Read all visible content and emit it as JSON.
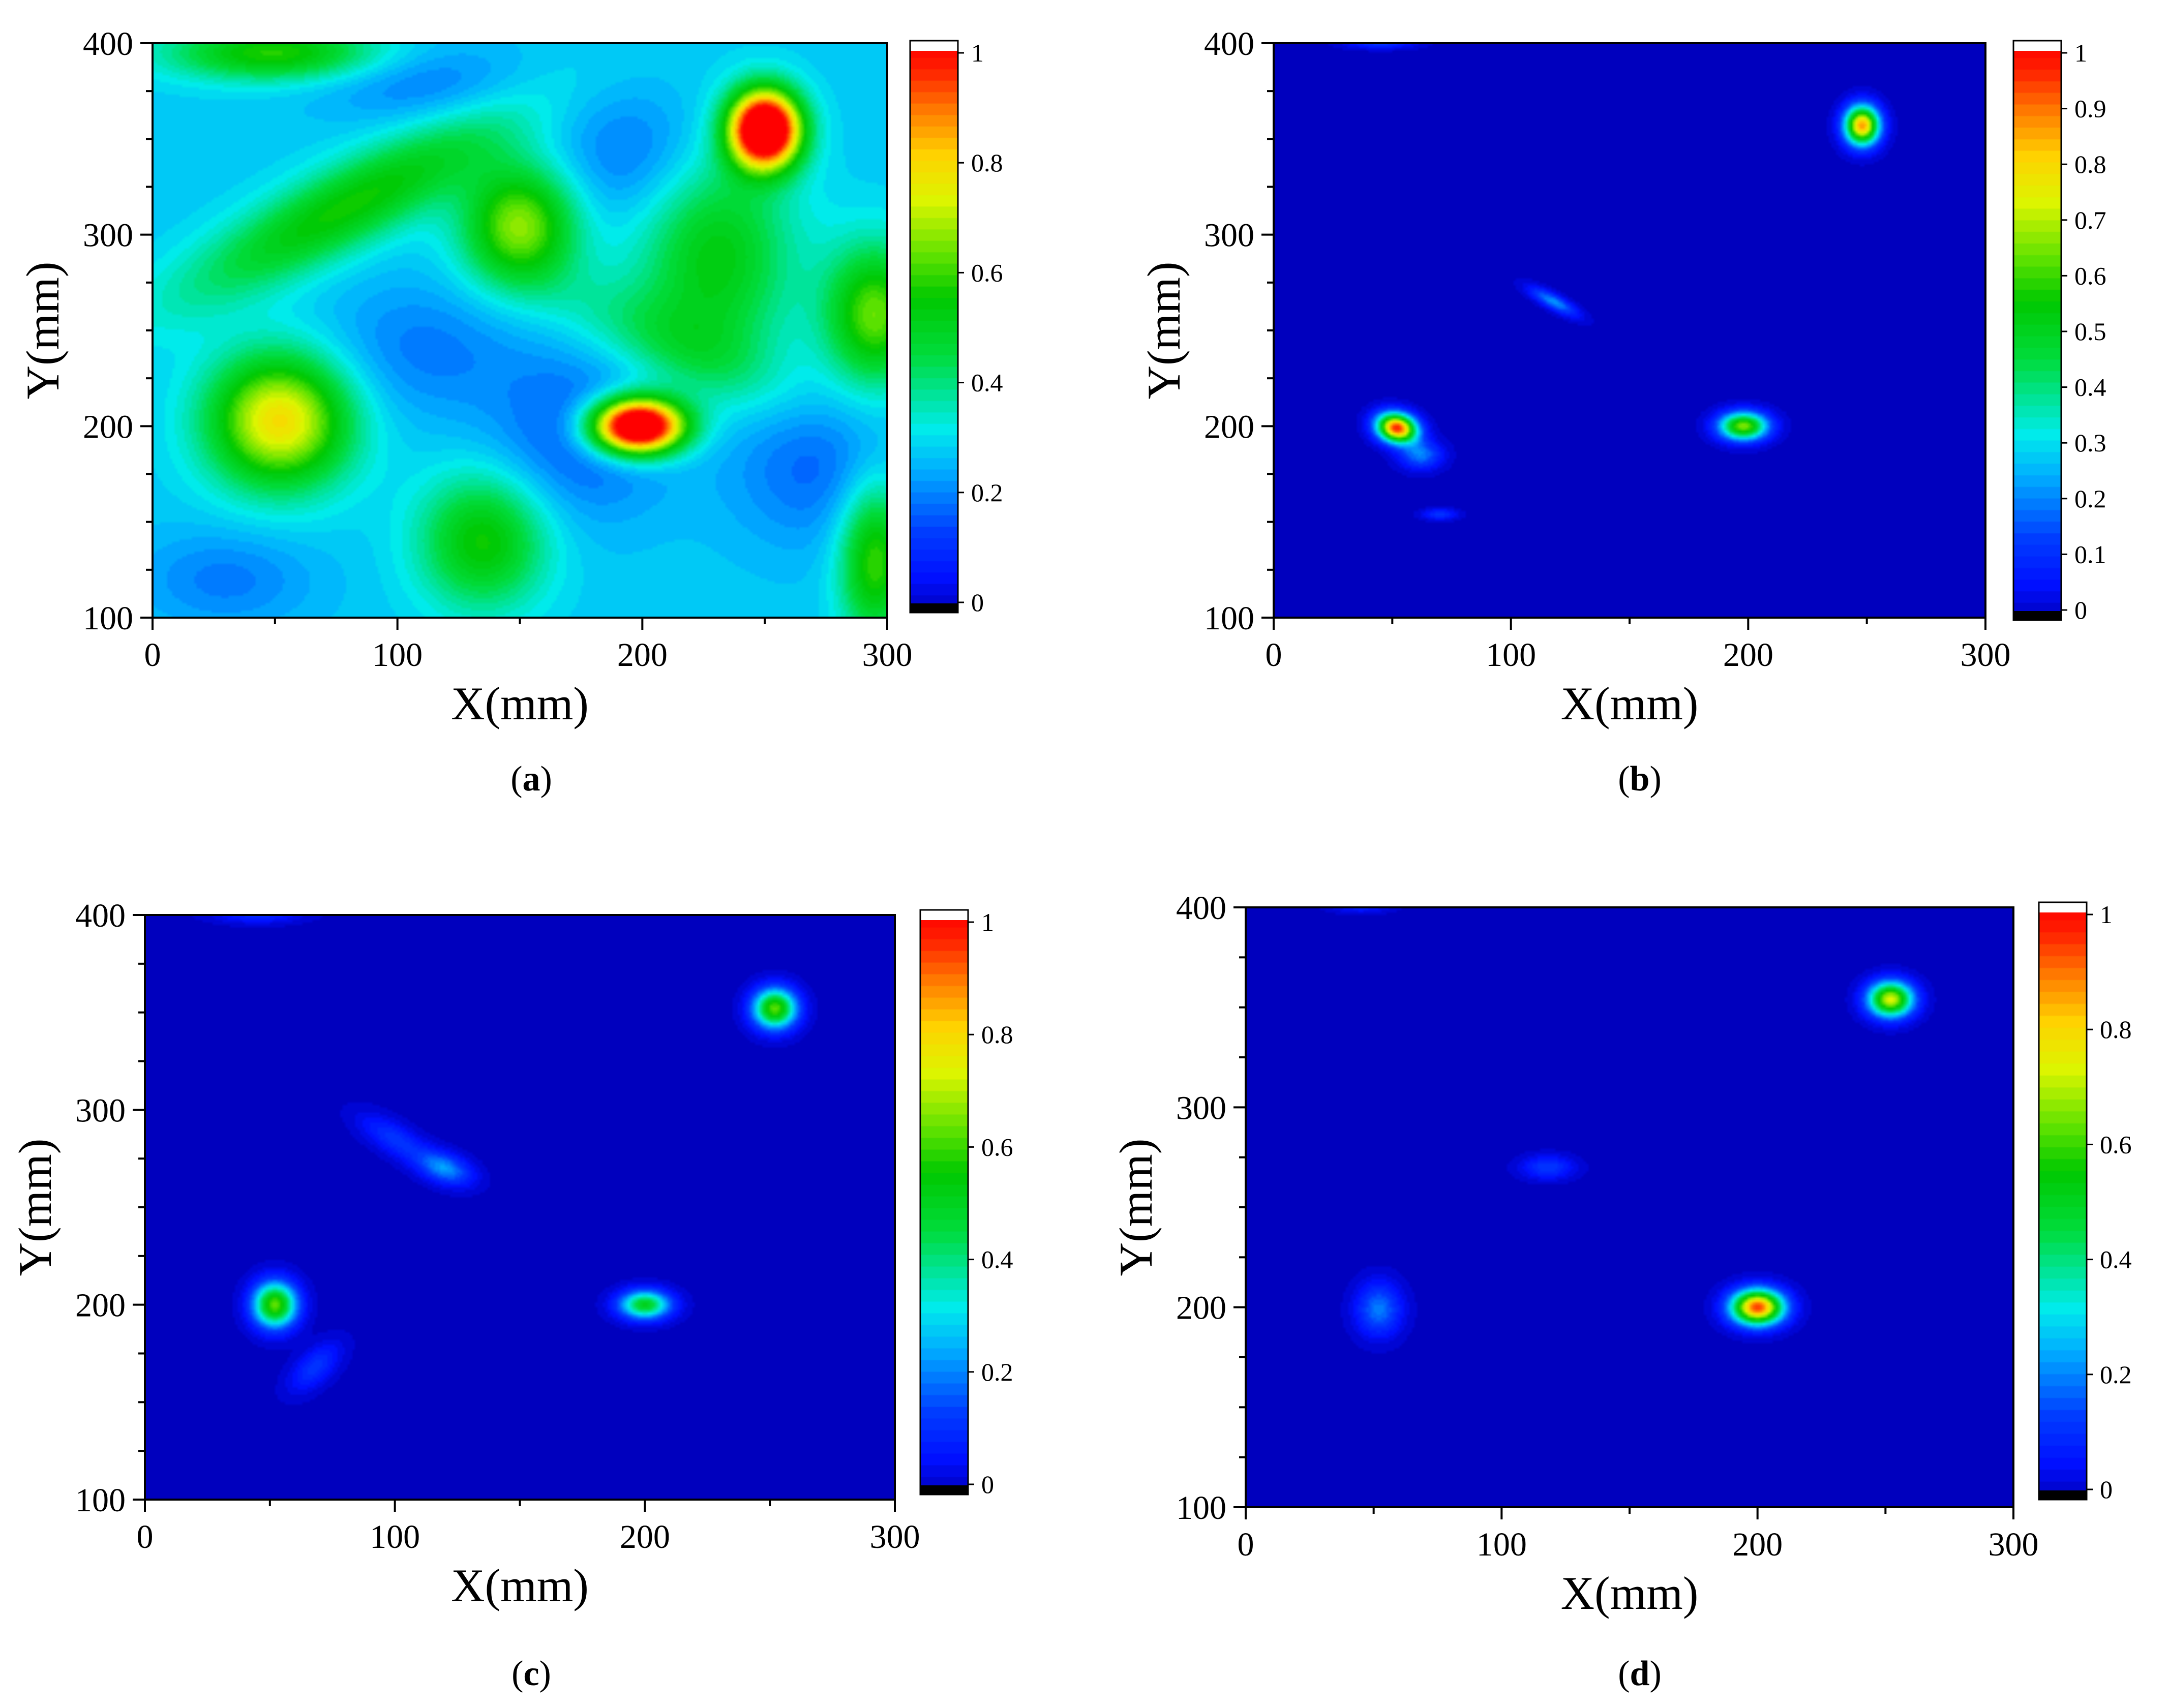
{
  "chart_data": [
    {
      "panel": "a",
      "type": "heatmap",
      "xlabel": "X(mm)",
      "ylabel": "Y(mm)",
      "xlim": [
        0,
        300
      ],
      "ylim": [
        100,
        400
      ],
      "xticks": [
        "0",
        "100",
        "200",
        "300"
      ],
      "yticks": [
        "100",
        "200",
        "300",
        "400"
      ],
      "colorbar": {
        "min": 0,
        "max": 1,
        "ticks": [
          "0",
          "0.2",
          "0.4",
          "0.6",
          "0.8",
          "1"
        ]
      },
      "background_value": 0.28,
      "features": [
        {
          "x": 250,
          "y": 355,
          "value": 1.0,
          "sx": 10,
          "sy": 14,
          "rot": 0
        },
        {
          "x": 198,
          "y": 200,
          "value": 1.0,
          "sx": 13,
          "sy": 10,
          "rot": 0
        },
        {
          "x": 52,
          "y": 203,
          "value": 0.5,
          "sx": 20,
          "sy": 24,
          "rot": 0
        },
        {
          "x": 150,
          "y": 305,
          "value": 0.38,
          "sx": 16,
          "sy": 22,
          "rot": 0
        },
        {
          "x": 80,
          "y": 315,
          "value": 0.28,
          "sx": 55,
          "sy": 14,
          "rot": 35
        },
        {
          "x": 230,
          "y": 290,
          "value": 0.25,
          "sx": 22,
          "sy": 40,
          "rot": 0
        },
        {
          "x": 295,
          "y": 258,
          "value": 0.35,
          "sx": 14,
          "sy": 25,
          "rot": 0
        },
        {
          "x": 135,
          "y": 140,
          "value": 0.28,
          "sx": 18,
          "sy": 24,
          "rot": 0
        },
        {
          "x": 50,
          "y": 395,
          "value": 0.3,
          "sx": 30,
          "sy": 10,
          "rot": 0
        },
        {
          "x": 295,
          "y": 130,
          "value": 0.32,
          "sx": 10,
          "sy": 28,
          "rot": 0
        },
        {
          "x": 210,
          "y": 245,
          "value": 0.12,
          "sx": 40,
          "sy": 15,
          "rot": -30
        },
        {
          "x": 175,
          "y": 195,
          "value": -0.12,
          "sx": 25,
          "sy": 30,
          "rot": 0
        },
        {
          "x": 270,
          "y": 180,
          "value": -0.1,
          "sx": 25,
          "sy": 30,
          "rot": 0
        },
        {
          "x": 200,
          "y": 340,
          "value": -0.1,
          "sx": 25,
          "sy": 25,
          "rot": 0
        },
        {
          "x": 110,
          "y": 380,
          "value": -0.08,
          "sx": 30,
          "sy": 15,
          "rot": 0
        },
        {
          "x": 30,
          "y": 120,
          "value": -0.08,
          "sx": 25,
          "sy": 18,
          "rot": 0
        },
        {
          "x": 110,
          "y": 240,
          "value": -0.08,
          "sx": 30,
          "sy": 25,
          "rot": 0
        }
      ]
    },
    {
      "panel": "b",
      "type": "heatmap",
      "xlabel": "X(mm)",
      "ylabel": "Y(mm)",
      "xlim": [
        0,
        300
      ],
      "ylim": [
        100,
        400
      ],
      "xticks": [
        "0",
        "100",
        "200",
        "300"
      ],
      "yticks": [
        "100",
        "200",
        "300",
        "400"
      ],
      "colorbar": {
        "min": 0,
        "max": 1,
        "ticks": [
          "0",
          "0.1",
          "0.2",
          "0.3",
          "0.4",
          "0.5",
          "0.6",
          "0.7",
          "0.8",
          "0.9",
          "1"
        ]
      },
      "background_value": 0,
      "features": [
        {
          "x": 248,
          "y": 357,
          "value": 0.85,
          "sx": 5,
          "sy": 7,
          "rot": 0
        },
        {
          "x": 52,
          "y": 199,
          "value": 0.95,
          "sx": 6,
          "sy": 5,
          "rot": -30
        },
        {
          "x": 198,
          "y": 200,
          "value": 0.65,
          "sx": 7,
          "sy": 5,
          "rot": 0
        },
        {
          "x": 118,
          "y": 265,
          "value": 0.22,
          "sx": 8,
          "sy": 2.5,
          "rot": -35
        },
        {
          "x": 62,
          "y": 185,
          "value": 0.2,
          "sx": 6,
          "sy": 5,
          "rot": 0
        },
        {
          "x": 70,
          "y": 154,
          "value": 0.12,
          "sx": 5,
          "sy": 2,
          "rot": 0
        },
        {
          "x": 45,
          "y": 400,
          "value": 0.12,
          "sx": 10,
          "sy": 2,
          "rot": 0
        }
      ]
    },
    {
      "panel": "c",
      "type": "heatmap",
      "xlabel": "X(mm)",
      "ylabel": "Y(mm)",
      "xlim": [
        0,
        300
      ],
      "ylim": [
        100,
        400
      ],
      "xticks": [
        "0",
        "100",
        "200",
        "300"
      ],
      "yticks": [
        "100",
        "200",
        "300",
        "400"
      ],
      "colorbar": {
        "min": 0,
        "max": 1,
        "ticks": [
          "0",
          "0.2",
          "0.4",
          "0.6",
          "0.8",
          "1"
        ]
      },
      "background_value": 0,
      "features": [
        {
          "x": 252,
          "y": 352,
          "value": 0.62,
          "sx": 6,
          "sy": 7,
          "rot": 0
        },
        {
          "x": 52,
          "y": 200,
          "value": 0.62,
          "sx": 6,
          "sy": 8,
          "rot": 0
        },
        {
          "x": 200,
          "y": 200,
          "value": 0.5,
          "sx": 7,
          "sy": 5,
          "rot": 0
        },
        {
          "x": 120,
          "y": 270,
          "value": 0.22,
          "sx": 8,
          "sy": 5,
          "rot": -30
        },
        {
          "x": 100,
          "y": 285,
          "value": 0.12,
          "sx": 12,
          "sy": 5,
          "rot": -40
        },
        {
          "x": 68,
          "y": 168,
          "value": 0.12,
          "sx": 10,
          "sy": 5,
          "rot": 55
        },
        {
          "x": 45,
          "y": 400,
          "value": 0.1,
          "sx": 12,
          "sy": 3,
          "rot": 0
        }
      ]
    },
    {
      "panel": "d",
      "type": "heatmap",
      "xlabel": "X(mm)",
      "ylabel": "Y(mm)",
      "xlim": [
        0,
        300
      ],
      "ylim": [
        100,
        400
      ],
      "xticks": [
        "0",
        "100",
        "200",
        "300"
      ],
      "yticks": [
        "100",
        "200",
        "300",
        "400"
      ],
      "colorbar": {
        "min": 0,
        "max": 1,
        "ticks": [
          "0",
          "0.2",
          "0.4",
          "0.6",
          "0.8",
          "1"
        ]
      },
      "background_value": 0,
      "features": [
        {
          "x": 252,
          "y": 354,
          "value": 0.72,
          "sx": 6,
          "sy": 6,
          "rot": 0
        },
        {
          "x": 200,
          "y": 200,
          "value": 0.92,
          "sx": 7,
          "sy": 6,
          "rot": 0
        },
        {
          "x": 52,
          "y": 199,
          "value": 0.2,
          "sx": 6,
          "sy": 9,
          "rot": 0
        },
        {
          "x": 118,
          "y": 270,
          "value": 0.13,
          "sx": 7,
          "sy": 4,
          "rot": 0
        },
        {
          "x": 45,
          "y": 400,
          "value": 0.08,
          "sx": 8,
          "sy": 2,
          "rot": 0
        }
      ]
    }
  ],
  "captions": [
    {
      "open": "(",
      "letter": "a",
      "close": ")"
    },
    {
      "open": "(",
      "letter": "b",
      "close": ")"
    },
    {
      "open": "(",
      "letter": "c",
      "close": ")"
    },
    {
      "open": "(",
      "letter": "d",
      "close": ")"
    }
  ]
}
